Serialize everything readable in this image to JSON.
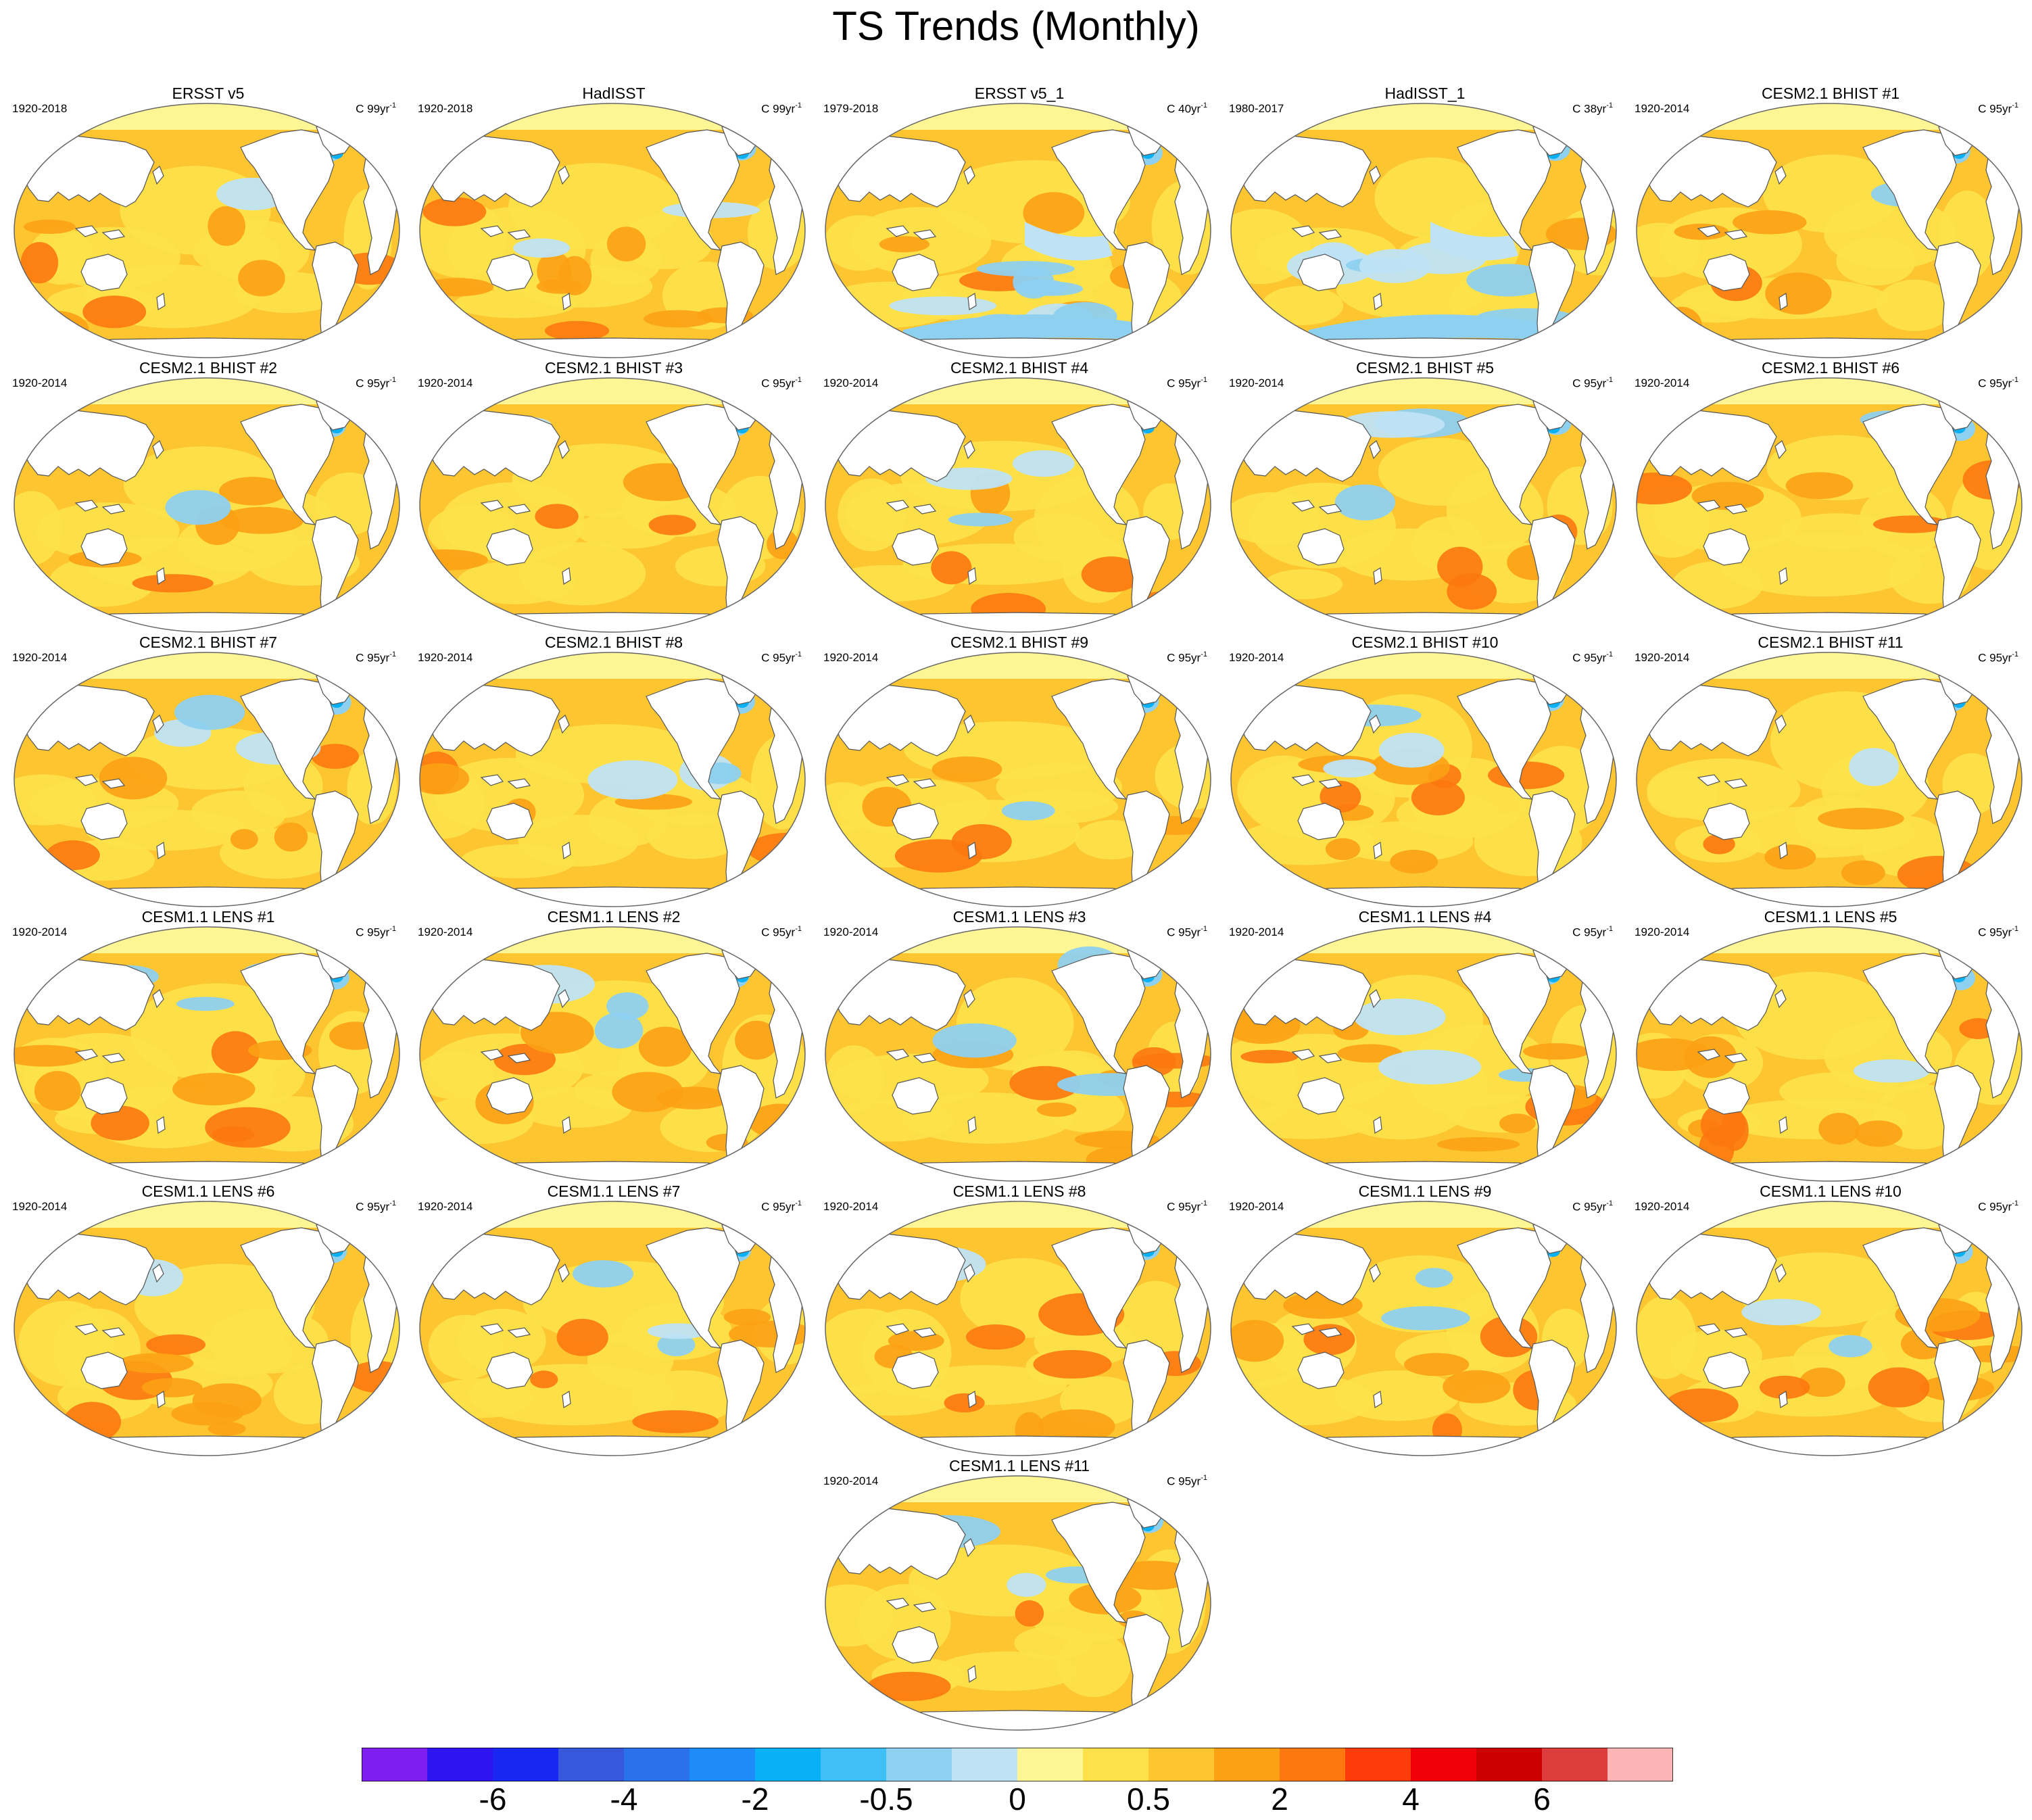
{
  "title": "TS Trends (Monthly)",
  "colors": {
    "ocean_base": "#fdc530",
    "land": "#ffffff",
    "coast": "#555555",
    "polar_band": "#fef594"
  },
  "colorbar": {
    "colors": [
      "#7f1ef0",
      "#2f14f2",
      "#1828f2",
      "#3858dc",
      "#2a72ec",
      "#1e8cf8",
      "#08b0f6",
      "#3ec0f6",
      "#8ed0f0",
      "#bfe3f5",
      "#fef594",
      "#fde14a",
      "#fdc530",
      "#fca114",
      "#fc7810",
      "#fc3c0a",
      "#f2000a",
      "#cc0000",
      "#dc3c3c",
      "#fcb4b4"
    ],
    "labels": [
      {
        "text": "-6",
        "boundary": 2
      },
      {
        "text": "-4",
        "boundary": 4
      },
      {
        "text": "-2",
        "boundary": 6
      },
      {
        "text": "-0.5",
        "boundary": 8
      },
      {
        "text": "0",
        "boundary": 10
      },
      {
        "text": "0.5",
        "boundary": 12
      },
      {
        "text": "2",
        "boundary": 14
      },
      {
        "text": "4",
        "boundary": 16
      },
      {
        "text": "6",
        "boundary": 18
      }
    ]
  },
  "panels": [
    {
      "title": "ERSST v5",
      "period": "1920-2018",
      "unit_base": "C 99yr",
      "unit_exp": "-1",
      "cool": "low",
      "warm": "high"
    },
    {
      "title": "HadISST",
      "period": "1920-2018",
      "unit_base": "C 99yr",
      "unit_exp": "-1",
      "cool": "mid",
      "warm": "high"
    },
    {
      "title": "ERSST v5_1",
      "period": "1979-2018",
      "unit_base": "C 40yr",
      "unit_exp": "-1",
      "cool": "high",
      "warm": "mid"
    },
    {
      "title": "HadISST_1",
      "period": "1980-2017",
      "unit_base": "C 38yr",
      "unit_exp": "-1",
      "cool": "high",
      "warm": "low"
    },
    {
      "title": "CESM2.1 BHIST #1",
      "period": "1920-2014",
      "unit_base": "C 95yr",
      "unit_exp": "-1",
      "cool": "low",
      "warm": "mid"
    },
    {
      "title": "CESM2.1 BHIST #2",
      "period": "1920-2014",
      "unit_base": "C 95yr",
      "unit_exp": "-1",
      "cool": "low",
      "warm": "mid"
    },
    {
      "title": "CESM2.1 BHIST #3",
      "period": "1920-2014",
      "unit_base": "C 95yr",
      "unit_exp": "-1",
      "cool": "low",
      "warm": "mid"
    },
    {
      "title": "CESM2.1 BHIST #4",
      "period": "1920-2014",
      "unit_base": "C 95yr",
      "unit_exp": "-1",
      "cool": "mid",
      "warm": "mid"
    },
    {
      "title": "CESM2.1 BHIST #5",
      "period": "1920-2014",
      "unit_base": "C 95yr",
      "unit_exp": "-1",
      "cool": "mid",
      "warm": "mid"
    },
    {
      "title": "CESM2.1 BHIST #6",
      "period": "1920-2014",
      "unit_base": "C 95yr",
      "unit_exp": "-1",
      "cool": "low",
      "warm": "mid"
    },
    {
      "title": "CESM2.1 BHIST #7",
      "period": "1920-2014",
      "unit_base": "C 95yr",
      "unit_exp": "-1",
      "cool": "mid",
      "warm": "mid"
    },
    {
      "title": "CESM2.1 BHIST #8",
      "period": "1920-2014",
      "unit_base": "C 95yr",
      "unit_exp": "-1",
      "cool": "mid",
      "warm": "mid"
    },
    {
      "title": "CESM2.1 BHIST #9",
      "period": "1920-2014",
      "unit_base": "C 95yr",
      "unit_exp": "-1",
      "cool": "low",
      "warm": "mid"
    },
    {
      "title": "CESM2.1 BHIST #10",
      "period": "1920-2014",
      "unit_base": "C 95yr",
      "unit_exp": "-1",
      "cool": "mid",
      "warm": "high"
    },
    {
      "title": "CESM2.1 BHIST #11",
      "period": "1920-2014",
      "unit_base": "C 95yr",
      "unit_exp": "-1",
      "cool": "low",
      "warm": "mid"
    },
    {
      "title": "CESM1.1 LENS #1",
      "period": "1920-2014",
      "unit_base": "C 95yr",
      "unit_exp": "-1",
      "cool": "mid",
      "warm": "high"
    },
    {
      "title": "CESM1.1 LENS #2",
      "period": "1920-2014",
      "unit_base": "C 95yr",
      "unit_exp": "-1",
      "cool": "mid",
      "warm": "high"
    },
    {
      "title": "CESM1.1 LENS #3",
      "period": "1920-2014",
      "unit_base": "C 95yr",
      "unit_exp": "-1",
      "cool": "mid",
      "warm": "high"
    },
    {
      "title": "CESM1.1 LENS #4",
      "period": "1920-2014",
      "unit_base": "C 95yr",
      "unit_exp": "-1",
      "cool": "mid",
      "warm": "high"
    },
    {
      "title": "CESM1.1 LENS #5",
      "period": "1920-2014",
      "unit_base": "C 95yr",
      "unit_exp": "-1",
      "cool": "low",
      "warm": "high"
    },
    {
      "title": "CESM1.1 LENS #6",
      "period": "1920-2014",
      "unit_base": "C 95yr",
      "unit_exp": "-1",
      "cool": "low",
      "warm": "high"
    },
    {
      "title": "CESM1.1 LENS #7",
      "period": "1920-2014",
      "unit_base": "C 95yr",
      "unit_exp": "-1",
      "cool": "mid",
      "warm": "mid"
    },
    {
      "title": "CESM1.1 LENS #8",
      "period": "1920-2014",
      "unit_base": "C 95yr",
      "unit_exp": "-1",
      "cool": "low",
      "warm": "high"
    },
    {
      "title": "CESM1.1 LENS #9",
      "period": "1920-2014",
      "unit_base": "C 95yr",
      "unit_exp": "-1",
      "cool": "mid",
      "warm": "high"
    },
    {
      "title": "CESM1.1 LENS #10",
      "period": "1920-2014",
      "unit_base": "C 95yr",
      "unit_exp": "-1",
      "cool": "mid",
      "warm": "high"
    },
    {
      "title": "CESM1.1 LENS #11",
      "period": "1920-2014",
      "unit_base": "C 95yr",
      "unit_exp": "-1",
      "cool": "mid",
      "warm": "mid"
    }
  ],
  "chart_data": {
    "type": "heatmap",
    "title": "TS Trends (Monthly)",
    "colorbar_ticks": [
      -6,
      -4,
      -2,
      -0.5,
      0,
      0.5,
      2,
      4,
      6
    ],
    "panel_count": 26,
    "grid": false
  }
}
